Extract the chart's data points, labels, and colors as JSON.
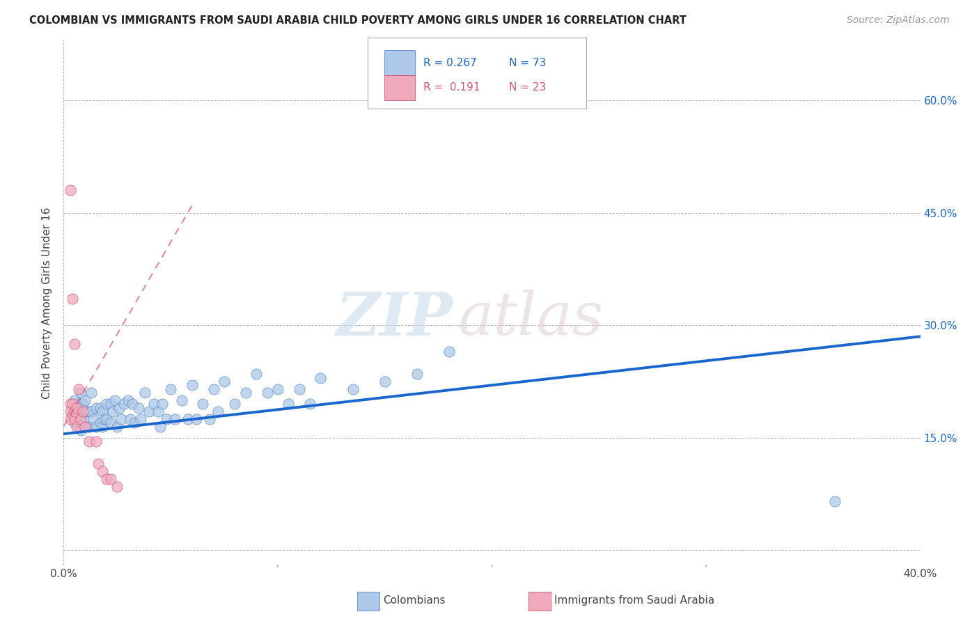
{
  "title": "COLOMBIAN VS IMMIGRANTS FROM SAUDI ARABIA CHILD POVERTY AMONG GIRLS UNDER 16 CORRELATION CHART",
  "source": "Source: ZipAtlas.com",
  "ylabel": "Child Poverty Among Girls Under 16",
  "xlim": [
    0.0,
    0.4
  ],
  "ylim": [
    -0.02,
    0.68
  ],
  "ytick_positions": [
    0.0,
    0.15,
    0.3,
    0.45,
    0.6
  ],
  "right_ytick_labels": [
    "",
    "15.0%",
    "30.0%",
    "45.0%",
    "60.0%"
  ],
  "colombian_color": "#adc8e8",
  "colombian_edge": "#5588cc",
  "saudi_color": "#f0aabb",
  "saudi_edge": "#cc5577",
  "trend_blue": "#1a66cc",
  "trend_pink": "#dd5577",
  "background": "#ffffff",
  "grid_color": "#bbbbbb",
  "blue_trend_x": [
    0.0,
    0.4
  ],
  "blue_trend_y": [
    0.155,
    0.285
  ],
  "pink_trend_x": [
    0.0,
    0.06
  ],
  "pink_trend_y": [
    0.165,
    0.46
  ],
  "colombian_scatter_x": [
    0.005,
    0.005,
    0.005,
    0.007,
    0.007,
    0.008,
    0.008,
    0.008,
    0.009,
    0.009,
    0.01,
    0.01,
    0.01,
    0.012,
    0.012,
    0.013,
    0.013,
    0.014,
    0.015,
    0.015,
    0.017,
    0.017,
    0.018,
    0.018,
    0.019,
    0.02,
    0.02,
    0.022,
    0.022,
    0.023,
    0.024,
    0.025,
    0.026,
    0.027,
    0.028,
    0.03,
    0.031,
    0.032,
    0.033,
    0.035,
    0.036,
    0.038,
    0.04,
    0.042,
    0.044,
    0.045,
    0.046,
    0.048,
    0.05,
    0.052,
    0.055,
    0.058,
    0.06,
    0.062,
    0.065,
    0.068,
    0.07,
    0.072,
    0.075,
    0.08,
    0.085,
    0.09,
    0.095,
    0.1,
    0.105,
    0.11,
    0.115,
    0.12,
    0.135,
    0.15,
    0.165,
    0.18,
    0.36
  ],
  "colombian_scatter_y": [
    0.2,
    0.185,
    0.17,
    0.195,
    0.175,
    0.21,
    0.185,
    0.16,
    0.175,
    0.195,
    0.165,
    0.185,
    0.2,
    0.185,
    0.165,
    0.21,
    0.185,
    0.175,
    0.19,
    0.165,
    0.19,
    0.17,
    0.185,
    0.165,
    0.175,
    0.195,
    0.175,
    0.195,
    0.17,
    0.185,
    0.2,
    0.165,
    0.19,
    0.175,
    0.195,
    0.2,
    0.175,
    0.195,
    0.17,
    0.19,
    0.175,
    0.21,
    0.185,
    0.195,
    0.185,
    0.165,
    0.195,
    0.175,
    0.215,
    0.175,
    0.2,
    0.175,
    0.22,
    0.175,
    0.195,
    0.175,
    0.215,
    0.185,
    0.225,
    0.195,
    0.21,
    0.235,
    0.21,
    0.215,
    0.195,
    0.215,
    0.195,
    0.23,
    0.215,
    0.225,
    0.235,
    0.265,
    0.065
  ],
  "saudi_scatter_x": [
    0.003,
    0.003,
    0.003,
    0.004,
    0.004,
    0.005,
    0.005,
    0.006,
    0.006,
    0.007,
    0.008,
    0.009,
    0.01,
    0.012,
    0.015,
    0.016,
    0.018,
    0.02,
    0.022,
    0.025,
    0.003,
    0.004,
    0.005
  ],
  "saudi_scatter_y": [
    0.195,
    0.185,
    0.175,
    0.18,
    0.195,
    0.175,
    0.185,
    0.19,
    0.165,
    0.215,
    0.175,
    0.185,
    0.165,
    0.145,
    0.145,
    0.115,
    0.105,
    0.095,
    0.095,
    0.085,
    0.48,
    0.335,
    0.275
  ]
}
